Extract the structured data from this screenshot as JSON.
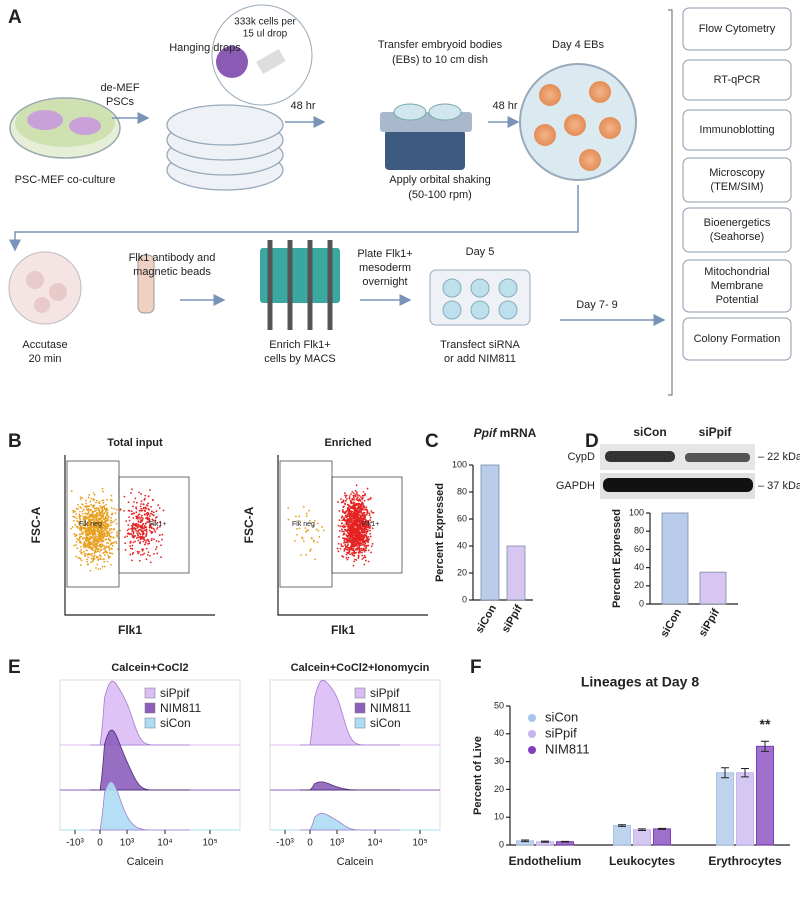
{
  "panel_labels": [
    "A",
    "B",
    "C",
    "D",
    "E",
    "F"
  ],
  "protocol": {
    "coculture": [
      "PSC-MEF co-culture"
    ],
    "demef": [
      "de-MEF",
      "PSCs"
    ],
    "hanging": [
      "Hanging drops"
    ],
    "drop": [
      "333k cells per",
      "15 ul drop"
    ],
    "time1": [
      "48 hr"
    ],
    "transfer": [
      "Transfer embryoid bodies",
      "(EBs) to 10 cm dish"
    ],
    "shaking": [
      "Apply orbital shaking",
      "(50-100 rpm)"
    ],
    "time2": [
      "48 hr"
    ],
    "day4": [
      "Day 4 EBs"
    ],
    "accutase": [
      "Accutase",
      "20 min"
    ],
    "antibody": [
      "Flk1 antibody and",
      "magnetic beads"
    ],
    "enrich": [
      "Enrich Flk1+",
      "cells by MACS"
    ],
    "plate": [
      "Plate Flk1+",
      "mesoderm",
      "overnight"
    ],
    "day5": [
      "Day 5"
    ],
    "transfect": [
      "Transfect siRNA",
      "or add NIM811"
    ],
    "day79": [
      "Day 7- 9"
    ],
    "assays": [
      [
        "Flow Cytometry"
      ],
      [
        "RT-qPCR"
      ],
      [
        "Immunoblotting"
      ],
      [
        "Microscopy",
        "(TEM/SIM)"
      ],
      [
        "Bioenergetics",
        "(Seahorse)"
      ],
      [
        "Mitochondrial",
        "Membrane",
        "Potential"
      ],
      [
        "Colony Formation"
      ]
    ]
  },
  "flow": {
    "titles": [
      "Total input",
      "Enriched"
    ],
    "ylabel": "FSC-A",
    "xlabel": "Flk1",
    "gates": [
      "Flk neg",
      "Flk1+"
    ]
  },
  "blot": {
    "lanes": [
      "siCon",
      "siPpif"
    ],
    "proteins": [
      "CypD",
      "GAPDH"
    ],
    "sizes": [
      "– 22 kDa",
      "– 37 kDa"
    ]
  },
  "calcein": {
    "titles": [
      "Calcein+CoCl2",
      "Calcein+CoCl2+Ionomycin"
    ],
    "legend": [
      "siPpif",
      "NIM811",
      "siCon"
    ],
    "colors": [
      "#dcbcf6",
      "#8d5fbd",
      "#aedcf3"
    ],
    "xlabel": "Calcein",
    "xtick_labels": [
      "-10³",
      "0",
      "10³",
      "10⁴",
      "10⁵"
    ]
  },
  "chart_data": [
    {
      "type": "bar",
      "title": "Ppif mRNA",
      "ylabel": "Percent Expressed",
      "categories": [
        "siCon",
        "siPpif"
      ],
      "values": [
        100,
        40
      ],
      "colors": [
        "#b9cdea",
        "#d6c6f1"
      ],
      "ylim": [
        0,
        100
      ],
      "yticks": [
        0,
        20,
        40,
        60,
        80,
        100
      ]
    },
    {
      "type": "bar",
      "ylabel": "Percent Expressed",
      "categories": [
        "siCon",
        "siPpif"
      ],
      "values": [
        100,
        35
      ],
      "colors": [
        "#b9cdea",
        "#d6c6f1"
      ],
      "ylim": [
        0,
        100
      ],
      "yticks": [
        0,
        20,
        40,
        60,
        80,
        100
      ]
    },
    {
      "type": "grouped_bar",
      "title": "Lineages at Day 8",
      "ylabel": "Percent of Live",
      "categories": [
        "Endothelium",
        "Leukocytes",
        "Erythrocytes"
      ],
      "series": [
        {
          "name": "siCon",
          "color": "#a9c4e8",
          "values": [
            1.5,
            7,
            26
          ],
          "errors": [
            0.3,
            0.3,
            1.8
          ]
        },
        {
          "name": "siPpif",
          "color": "#c6b5ee",
          "values": [
            1.2,
            5.5,
            26
          ],
          "errors": [
            0.2,
            0.3,
            1.5
          ]
        },
        {
          "name": "NIM811",
          "color": "#7d40ba",
          "values": [
            1.2,
            5.8,
            35.5
          ],
          "errors": [
            0.1,
            0.2,
            1.8
          ]
        }
      ],
      "ylim": [
        0,
        50
      ],
      "yticks": [
        0,
        10,
        20,
        30,
        40,
        50
      ],
      "annotation": "**"
    }
  ]
}
